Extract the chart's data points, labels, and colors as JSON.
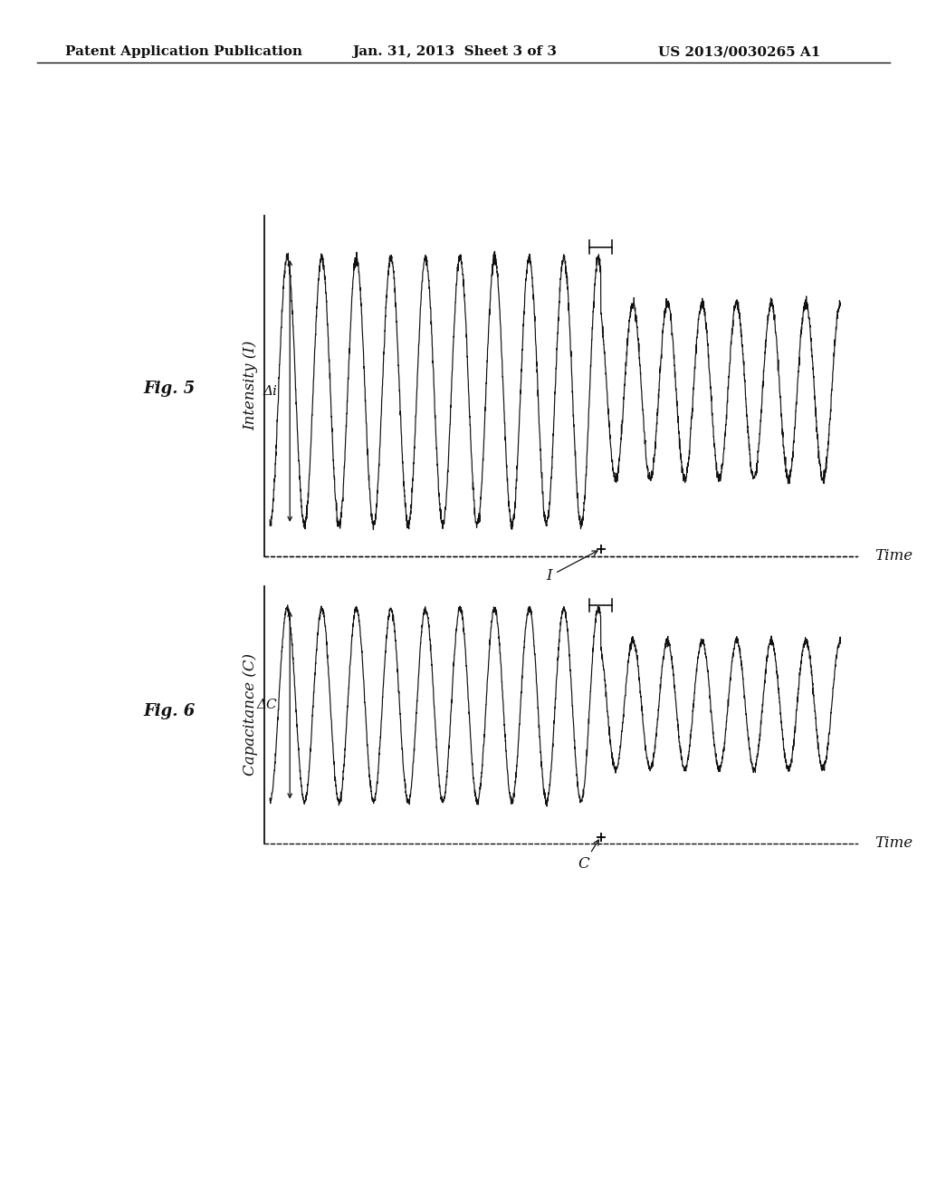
{
  "bg_color": "#ffffff",
  "header_left": "Patent Application Publication",
  "header_mid": "Jan. 31, 2013  Sheet 3 of 3",
  "header_right": "US 2013/0030265 A1",
  "fig5_label": "Fig. 5",
  "fig6_label": "Fig. 6",
  "fig5_ylabel": "Intensity (I)",
  "fig6_ylabel": "Capacitance (C)",
  "fig5_xlabel": "Time",
  "fig6_xlabel": "Time",
  "fig5_delta_label": "Δi",
  "fig6_delta_label": "ΔC",
  "fig5_point_label": "I",
  "fig6_point_label": "C",
  "text_color": "#111111",
  "line_color": "#111111",
  "header_fontsize": 11,
  "label_fontsize": 13,
  "axis_label_fontsize": 12,
  "tick_fontsize": 11
}
